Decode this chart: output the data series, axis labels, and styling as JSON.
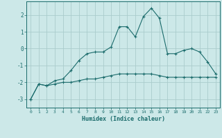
{
  "xlabel": "Humidex (Indice chaleur)",
  "background_color": "#cce8e8",
  "grid_color": "#aacccc",
  "line_color": "#1a6b6b",
  "line1_x": [
    0,
    1,
    2,
    3,
    4,
    5,
    6,
    7,
    8,
    9,
    10,
    11,
    12,
    13,
    14,
    15,
    16,
    17,
    18,
    19,
    20,
    21,
    22,
    23
  ],
  "line1_y": [
    -3.0,
    -2.1,
    -2.2,
    -1.9,
    -1.8,
    -1.3,
    -0.7,
    -0.3,
    -0.2,
    -0.2,
    0.1,
    1.3,
    1.3,
    0.7,
    1.9,
    2.4,
    1.8,
    -0.3,
    -0.3,
    -0.1,
    0.0,
    -0.2,
    -0.8,
    -1.5
  ],
  "line2_x": [
    0,
    1,
    2,
    3,
    4,
    5,
    6,
    7,
    8,
    9,
    10,
    11,
    12,
    13,
    14,
    15,
    16,
    17,
    18,
    19,
    20,
    21,
    22,
    23
  ],
  "line2_y": [
    -3.0,
    -2.1,
    -2.2,
    -2.1,
    -2.0,
    -2.0,
    -1.9,
    -1.8,
    -1.8,
    -1.7,
    -1.6,
    -1.5,
    -1.5,
    -1.5,
    -1.5,
    -1.5,
    -1.6,
    -1.7,
    -1.7,
    -1.7,
    -1.7,
    -1.7,
    -1.7,
    -1.7
  ],
  "xlim": [
    -0.5,
    23.5
  ],
  "ylim": [
    -3.5,
    2.8
  ],
  "yticks": [
    -3,
    -2,
    -1,
    0,
    1,
    2
  ],
  "xticks": [
    0,
    1,
    2,
    3,
    4,
    5,
    6,
    7,
    8,
    9,
    10,
    11,
    12,
    13,
    14,
    15,
    16,
    17,
    18,
    19,
    20,
    21,
    22,
    23
  ],
  "marker": "+"
}
